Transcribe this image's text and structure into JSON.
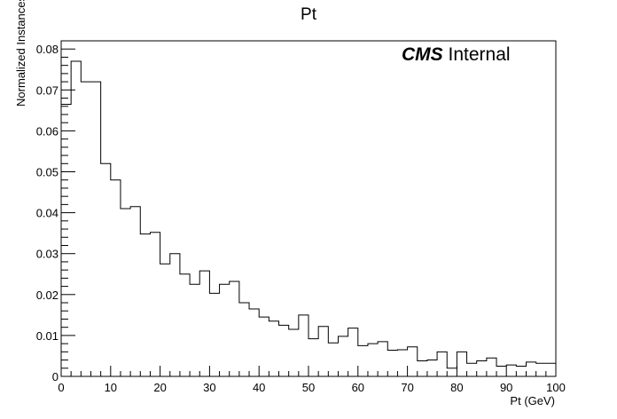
{
  "chart_data": {
    "type": "histogram",
    "title": "Pt",
    "xlabel": "Pt (GeV)",
    "ylabel": "Normalized Instances",
    "label_bold": "CMS",
    "label_normal": "Internal",
    "xlim": [
      0,
      100
    ],
    "ylim": [
      0,
      0.082
    ],
    "x_ticks": [
      0,
      10,
      20,
      30,
      40,
      50,
      60,
      70,
      80,
      90,
      100
    ],
    "x_tick_labels": [
      "0",
      "10",
      "20",
      "30",
      "40",
      "50",
      "60",
      "70",
      "80",
      "90",
      "100"
    ],
    "y_ticks": [
      0,
      0.01,
      0.02,
      0.03,
      0.04,
      0.05,
      0.06,
      0.07,
      0.08
    ],
    "y_tick_labels": [
      "0",
      "0.01",
      "0.02",
      "0.03",
      "0.04",
      "0.05",
      "0.06",
      "0.07",
      "0.08"
    ],
    "bin_width": 2,
    "bin_values": [
      0.0665,
      0.077,
      0.072,
      0.072,
      0.052,
      0.048,
      0.041,
      0.0415,
      0.0348,
      0.0352,
      0.0275,
      0.03,
      0.025,
      0.0225,
      0.0258,
      0.0203,
      0.0225,
      0.0232,
      0.018,
      0.0165,
      0.0145,
      0.0135,
      0.0125,
      0.0115,
      0.015,
      0.0092,
      0.0122,
      0.0082,
      0.0098,
      0.0118,
      0.0075,
      0.008,
      0.0085,
      0.0064,
      0.0065,
      0.0072,
      0.0038,
      0.004,
      0.006,
      0.002,
      0.006,
      0.0032,
      0.0038,
      0.0045,
      0.0025,
      0.0028,
      0.0025,
      0.0035,
      0.0032
    ],
    "grid": false,
    "legend": "none"
  }
}
